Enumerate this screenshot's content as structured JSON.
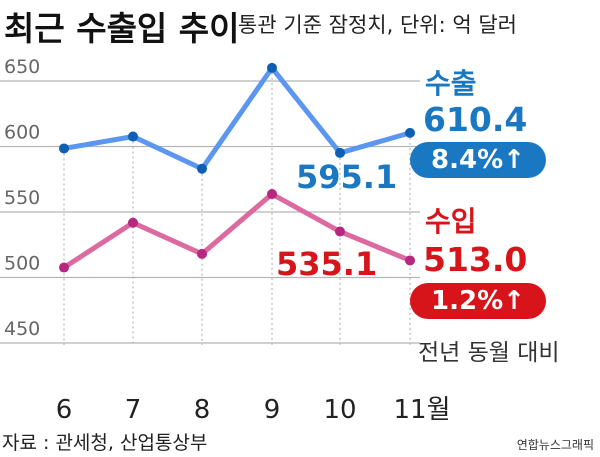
{
  "chart_data": {
    "type": "line",
    "title": "최근 수출입 추이",
    "subtitle": "통관 기준 잠정치, 단위: 억 달러",
    "categories": [
      "6",
      "7",
      "8",
      "9",
      "10",
      "11월"
    ],
    "yticks": [
      "650",
      "600",
      "550",
      "500",
      "450"
    ],
    "ylim": [
      450,
      650
    ],
    "grid": true,
    "series": [
      {
        "name": "수출",
        "color": "#5b96f0",
        "dot_color": "#0d5eb5",
        "values": [
          598.5,
          607.6,
          583.0,
          660.0,
          595.1,
          610.4
        ]
      },
      {
        "name": "수입",
        "color": "#dc6aa0",
        "dot_color": "#b8277f",
        "values": [
          507.6,
          541.8,
          518.0,
          563.7,
          535.1,
          513.0
        ]
      }
    ],
    "annotations": {
      "export_prev": "595.1",
      "import_prev": "535.1",
      "export_label": "수출",
      "export_value": "610.4",
      "export_change": "8.4%↑",
      "import_label": "수입",
      "import_value": "513.0",
      "import_change": "1.2%↑",
      "change_note": "전년 동월 대비"
    },
    "source": "자료 : 관세청, 산업통상부",
    "credit": "연합뉴스그래픽"
  },
  "colors": {
    "export": "#1a78c2",
    "import": "#d7141a"
  }
}
